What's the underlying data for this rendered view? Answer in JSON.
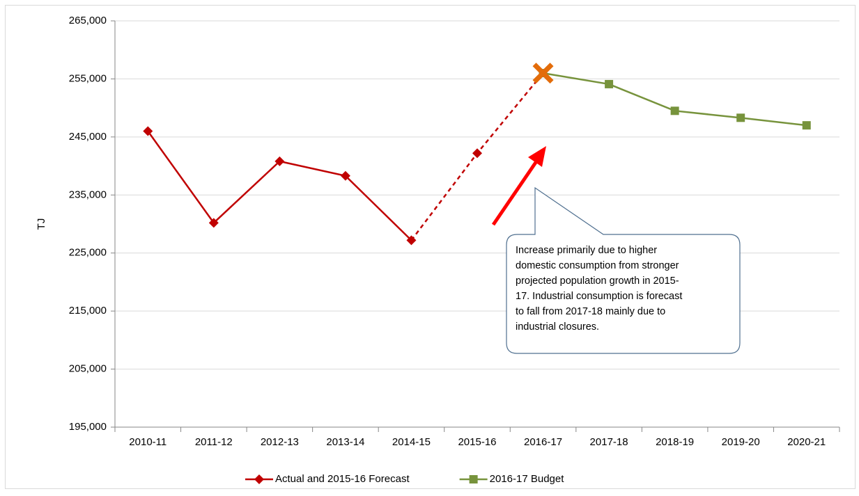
{
  "chart_data": {
    "type": "line",
    "y_axis_label": "TJ",
    "categories": [
      "2010-11",
      "2011-12",
      "2012-13",
      "2013-14",
      "2014-15",
      "2015-16",
      "2016-17",
      "2017-18",
      "2018-19",
      "2019-20",
      "2020-21"
    ],
    "series": [
      {
        "name": "2016-17 Budget",
        "color": "#77933c",
        "marker": "square",
        "values": [
          null,
          null,
          null,
          null,
          null,
          null,
          256000,
          254100,
          249500,
          248300,
          247000
        ]
      },
      {
        "name": "Actual and 2015-16 Forecast",
        "color": "#c00000",
        "marker": "diamond",
        "values": [
          246000,
          230200,
          240800,
          238300,
          227200,
          242200,
          256000,
          null,
          null,
          null,
          null
        ],
        "dashed": [
          false,
          false,
          false,
          false,
          false,
          true,
          true,
          false,
          false,
          false,
          false
        ],
        "markers": [
          "diamond",
          "diamond",
          "diamond",
          "diamond",
          "diamond",
          "diamond",
          "x",
          null,
          null,
          null,
          null
        ],
        "highlight_color": "#e36c0a"
      }
    ],
    "ylim": [
      195000,
      265000
    ],
    "yticks": [
      {
        "value": 195000,
        "label": "195,000"
      },
      {
        "value": 205000,
        "label": "205,000"
      },
      {
        "value": 215000,
        "label": "215,000"
      },
      {
        "value": 225000,
        "label": "225,000"
      },
      {
        "value": 235000,
        "label": "235,000"
      },
      {
        "value": 245000,
        "label": "245,000"
      },
      {
        "value": 255000,
        "label": "255,000"
      },
      {
        "value": 265000,
        "label": "265,000"
      }
    ],
    "grid": true,
    "legend": "bottom",
    "annotation": {
      "lines": [
        "Increase primarily due to higher",
        "domestic consumption from stronger",
        "projected population growth in 2015-",
        "17. Industrial consumption is forecast",
        "to fall from 2017-18 mainly due to",
        "industrial closures."
      ],
      "arrow_color": "#ff0000"
    }
  }
}
